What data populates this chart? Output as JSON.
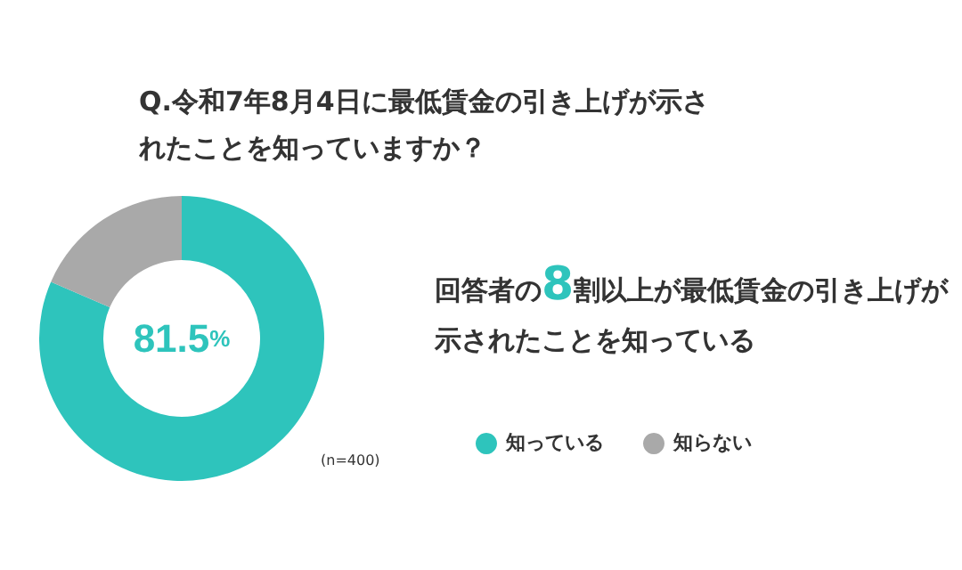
{
  "chart_data": {
    "type": "donut",
    "title": "Q.令和7年8月4日に最低賃金の引き上げが示されたことを知っていますか？",
    "categories": [
      "知っている",
      "知らない"
    ],
    "values": [
      81.5,
      18.5
    ],
    "colors": [
      "#2ec4bc",
      "#a9a9a9"
    ],
    "value_labels": [
      "81.5%",
      null
    ],
    "legend": "bottom",
    "annotations": [
      "回答者の8割以上が最低賃金の引き上げが示されたことを知っている",
      "(n=400)"
    ]
  }
}
